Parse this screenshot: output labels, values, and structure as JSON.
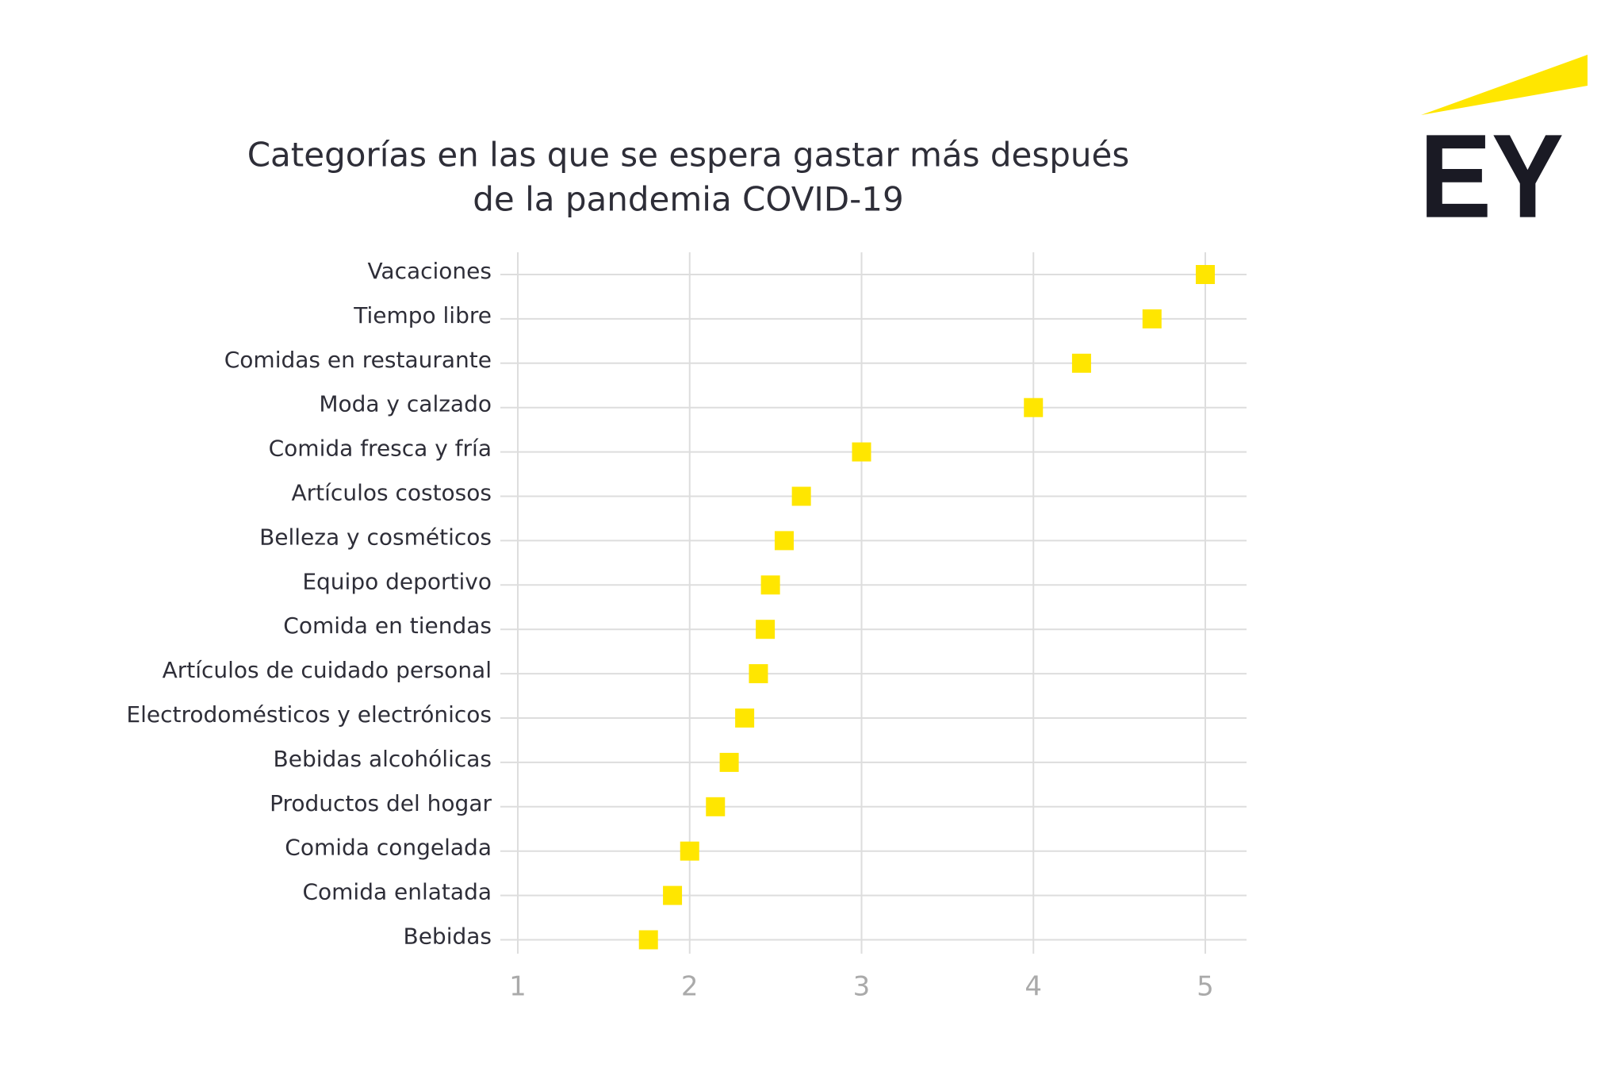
{
  "logo": {
    "text": "EY"
  },
  "chart_data": {
    "type": "dot",
    "title": [
      "Categorías en las que se espera gastar más después",
      "de la pandemia COVID-19"
    ],
    "categories": [
      "Vacaciones",
      "Tiempo libre",
      "Comidas en restaurante",
      "Moda y calzado",
      "Comida fresca y fría",
      "Artículos costosos",
      "Belleza y cosméticos",
      "Equipo deportivo",
      "Comida en tiendas",
      "Artículos de cuidado personal",
      "Electrodomésticos y electrónicos",
      "Bebidas alcohólicas",
      "Productos del hogar",
      "Comida congelada",
      "Comida enlatada",
      "Bebidas"
    ],
    "values": [
      5.0,
      4.69,
      4.28,
      4.0,
      3.0,
      2.65,
      2.55,
      2.47,
      2.44,
      2.4,
      2.32,
      2.23,
      2.15,
      2.0,
      1.9,
      1.76
    ],
    "color": "#ffe600",
    "xlim": [
      1,
      5.24
    ],
    "xticks": [
      1,
      2,
      3,
      4,
      5
    ],
    "grid": true
  }
}
